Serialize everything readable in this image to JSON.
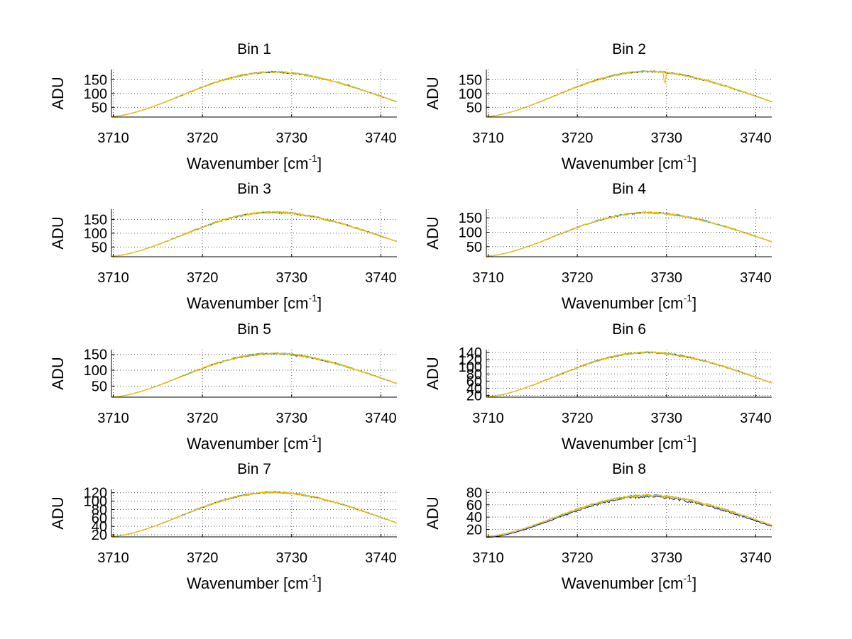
{
  "chart_data": [
    {
      "type": "line",
      "title": "Bin 1",
      "xlabel": "Wavenumber [cm",
      "xlabel_sup": "-1",
      "xlabel_end": "]",
      "ylabel": "ADU",
      "xlim": [
        3709.8,
        3741.8
      ],
      "ylim": [
        15,
        187
      ],
      "xticks": [
        3710,
        3720,
        3730,
        3740
      ],
      "yticks": [
        50,
        100,
        150
      ],
      "grid": true,
      "peak_x": 3728,
      "left_value": 17,
      "peak_value": 178,
      "right_value": 70,
      "noise": 3,
      "dip": null,
      "series_colors": [
        "#0000a0",
        "#00a0a0",
        "#a0c000",
        "#ffc000"
      ]
    },
    {
      "type": "line",
      "title": "Bin 2",
      "xlabel": "Wavenumber [cm",
      "xlabel_sup": "-1",
      "xlabel_end": "]",
      "ylabel": "ADU",
      "xlim": [
        3709.8,
        3741.8
      ],
      "ylim": [
        15,
        187
      ],
      "xticks": [
        3710,
        3720,
        3730,
        3740
      ],
      "yticks": [
        50,
        100,
        150
      ],
      "grid": true,
      "peak_x": 3728,
      "left_value": 17,
      "peak_value": 180,
      "right_value": 70,
      "noise": 3,
      "dip": {
        "x": 3729.8,
        "depth": 35
      },
      "series_colors": [
        "#0000a0",
        "#00a0a0",
        "#a0c000",
        "#ffc000"
      ]
    },
    {
      "type": "line",
      "title": "Bin 3",
      "xlabel": "Wavenumber [cm",
      "xlabel_sup": "-1",
      "xlabel_end": "]",
      "ylabel": "ADU",
      "xlim": [
        3709.8,
        3741.8
      ],
      "ylim": [
        15,
        187
      ],
      "xticks": [
        3710,
        3720,
        3730,
        3740
      ],
      "yticks": [
        50,
        100,
        150
      ],
      "grid": true,
      "peak_x": 3728,
      "left_value": 17,
      "peak_value": 176,
      "right_value": 70,
      "noise": 3.5,
      "dip": null,
      "series_colors": [
        "#0000a0",
        "#00a0a0",
        "#a0c000",
        "#ffc000"
      ]
    },
    {
      "type": "line",
      "title": "Bin 4",
      "xlabel": "Wavenumber [cm",
      "xlabel_sup": "-1",
      "xlabel_end": "]",
      "ylabel": "ADU",
      "xlim": [
        3709.8,
        3741.8
      ],
      "ylim": [
        15,
        180
      ],
      "xticks": [
        3710,
        3720,
        3730,
        3740
      ],
      "yticks": [
        50,
        100,
        150
      ],
      "grid": true,
      "peak_x": 3728,
      "left_value": 17,
      "peak_value": 168,
      "right_value": 67,
      "noise": 3,
      "dip": null,
      "series_colors": [
        "#0000a0",
        "#00a0a0",
        "#a0c000",
        "#ffc000"
      ]
    },
    {
      "type": "line",
      "title": "Bin 5",
      "xlabel": "Wavenumber [cm",
      "xlabel_sup": "-1",
      "xlabel_end": "]",
      "ylabel": "ADU",
      "xlim": [
        3709.8,
        3741.8
      ],
      "ylim": [
        15,
        165
      ],
      "xticks": [
        3710,
        3720,
        3730,
        3740
      ],
      "yticks": [
        50,
        100,
        150
      ],
      "grid": true,
      "peak_x": 3728,
      "left_value": 15,
      "peak_value": 153,
      "right_value": 58,
      "noise": 3,
      "dip": null,
      "series_colors": [
        "#0000a0",
        "#00a0a0",
        "#a0c000",
        "#ffc000"
      ]
    },
    {
      "type": "line",
      "title": "Bin 6",
      "xlabel": "Wavenumber [cm",
      "xlabel_sup": "-1",
      "xlabel_end": "]",
      "ylabel": "ADU",
      "xlim": [
        3709.8,
        3741.8
      ],
      "ylim": [
        15,
        148
      ],
      "xticks": [
        3710,
        3720,
        3730,
        3740
      ],
      "yticks": [
        20,
        40,
        60,
        80,
        100,
        120,
        140
      ],
      "grid": true,
      "peak_x": 3728,
      "left_value": 16,
      "peak_value": 140,
      "right_value": 55,
      "noise": 2.5,
      "dip": null,
      "series_colors": [
        "#0000a0",
        "#00a0a0",
        "#a0c000",
        "#ffc000"
      ]
    },
    {
      "type": "line",
      "title": "Bin 7",
      "xlabel": "Wavenumber [cm",
      "xlabel_sup": "-1",
      "xlabel_end": "]",
      "ylabel": "ADU",
      "xlim": [
        3709.8,
        3741.8
      ],
      "ylim": [
        15,
        128
      ],
      "xticks": [
        3710,
        3720,
        3730,
        3740
      ],
      "yticks": [
        20,
        40,
        60,
        80,
        100,
        120
      ],
      "grid": true,
      "peak_x": 3728,
      "left_value": 16,
      "peak_value": 121,
      "right_value": 48,
      "noise": 2,
      "dip": null,
      "series_colors": [
        "#0000a0",
        "#00a0a0",
        "#a0c000",
        "#ffc000"
      ]
    },
    {
      "type": "line",
      "title": "Bin 8",
      "xlabel": "Wavenumber [cm",
      "xlabel_sup": "-1",
      "xlabel_end": "]",
      "ylabel": "ADU",
      "xlim": [
        3709.8,
        3741.8
      ],
      "ylim": [
        8,
        85
      ],
      "xticks": [
        3710,
        3720,
        3730,
        3740
      ],
      "yticks": [
        20,
        40,
        60,
        80
      ],
      "grid": true,
      "peak_x": 3728,
      "left_value": 9,
      "peak_value": 75,
      "right_value": 27,
      "noise": 2,
      "dip": null,
      "series_colors": [
        "#0000a0",
        "#00a0a0",
        "#a0c000",
        "#ffc000"
      ]
    }
  ]
}
